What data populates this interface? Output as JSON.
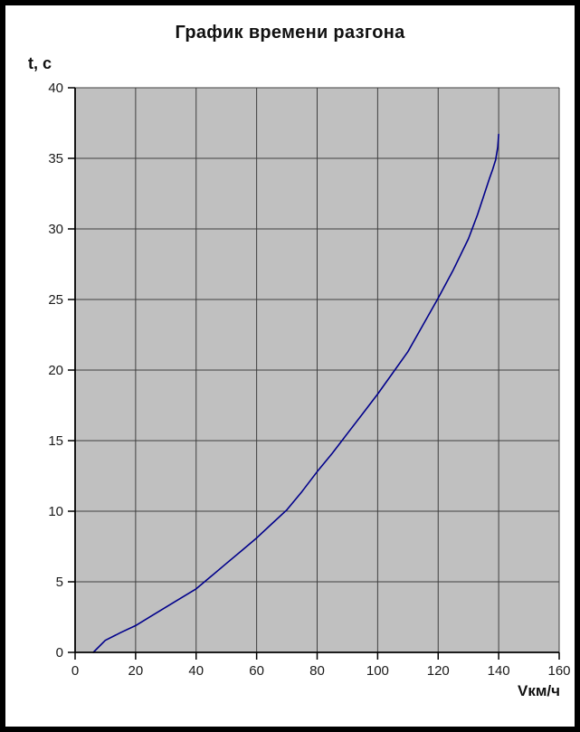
{
  "chart_data": {
    "type": "line",
    "title": "График времени разгона",
    "ylabel": "t, c",
    "xlabel": "Vкм/ч",
    "xlim": [
      0,
      160
    ],
    "ylim": [
      0,
      40
    ],
    "x_ticks": [
      0,
      20,
      40,
      60,
      80,
      100,
      120,
      140,
      160
    ],
    "y_ticks": [
      0,
      5,
      10,
      15,
      20,
      25,
      30,
      35,
      40
    ],
    "grid": true,
    "legend": false,
    "series": [
      {
        "x": [
          6,
          10,
          15,
          20,
          25,
          30,
          35,
          40,
          45,
          50,
          55,
          60,
          65,
          70,
          75,
          80,
          85,
          90,
          95,
          100,
          105,
          110,
          115,
          120,
          125,
          130,
          133,
          135,
          137,
          138,
          139,
          139.7,
          140
        ],
        "y": [
          0,
          0.85,
          1.4,
          1.9,
          2.55,
          3.2,
          3.85,
          4.5,
          5.4,
          6.3,
          7.2,
          8.1,
          9.1,
          10.1,
          11.4,
          12.8,
          14.1,
          15.5,
          16.9,
          18.3,
          19.8,
          21.3,
          23.2,
          25.1,
          27.1,
          29.3,
          31.0,
          32.3,
          33.6,
          34.2,
          34.9,
          35.8,
          36.7
        ]
      }
    ],
    "colors": {
      "page_bg": "#ffffff",
      "frame": "#000000",
      "plot_bg": "#c0c0c0",
      "grid": "#3f3f3f",
      "axis": "#000000",
      "line": "#00008b",
      "text": "#1a1a1a"
    }
  }
}
